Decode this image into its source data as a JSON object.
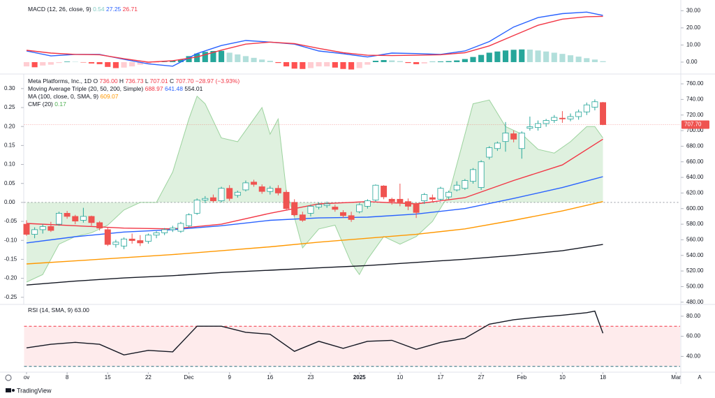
{
  "chart_data": [
    {
      "type": "macd",
      "title": "MACD (12, 26, close, 9)",
      "legend_values": [
        {
          "text": "0.54",
          "color": "#80cbc4"
        },
        {
          "text": "27.25",
          "color": "#2962ff"
        },
        {
          "text": "26.71",
          "color": "#f23645"
        }
      ],
      "ylim": [
        -4.5,
        33
      ],
      "yticks": [
        {
          "value": 30,
          "label": "30.00"
        },
        {
          "value": 20,
          "label": "20.00"
        },
        {
          "value": 10,
          "label": "10.00"
        },
        {
          "value": 0,
          "label": "0.00"
        }
      ],
      "histogram": {
        "colors": [
          "#26a69a",
          "#b2dfdb",
          "#ff5252",
          "#ffcdd2"
        ],
        "values": [
          -2.5,
          -3,
          -2,
          -1.5,
          -0.5,
          0.3,
          0.2,
          -0.2,
          -0.8,
          -1.2,
          -2.8,
          -3.5,
          -3.2,
          -2.5,
          -1.5,
          -0.8,
          -0.3,
          0.2,
          0.8,
          1.5,
          3.5,
          5,
          6,
          6.5,
          6.6,
          5.5,
          4.5,
          3.5,
          2.5,
          1.5,
          0.8,
          -0.5,
          -2.5,
          -3.8,
          -4,
          -3.5,
          -2.5,
          -2.5,
          -3.2,
          -4,
          -4.3,
          -3.5,
          -1.5,
          0.8,
          1.2,
          1,
          0.6,
          -0.5,
          -1.2,
          -0.8,
          0.2,
          0.4,
          0.6,
          1,
          1.8,
          3,
          4.2,
          5.5,
          6.2,
          6.8,
          7.2,
          7.4,
          7.3,
          6.8,
          6.2,
          5.5,
          4.8,
          4,
          3.2,
          2.3,
          1.5,
          0.54
        ]
      },
      "series": [
        {
          "color": "#2962ff",
          "x": [
            0,
            3,
            6,
            9,
            12,
            15,
            18,
            21,
            24,
            27,
            30,
            33,
            36,
            39,
            42,
            45,
            48,
            51,
            54,
            57,
            60,
            63,
            66,
            69,
            71
          ],
          "values": [
            6.5,
            3.6,
            4.5,
            4.5,
            1.6,
            -1.0,
            -2.4,
            5.0,
            9.7,
            12.6,
            11.7,
            10.5,
            6.5,
            4.9,
            3.0,
            5.3,
            5.0,
            4.5,
            6.5,
            12.0,
            20.5,
            26.0,
            28.3,
            29.2,
            27.25
          ]
        },
        {
          "color": "#f23645",
          "x": [
            0,
            3,
            6,
            9,
            12,
            15,
            18,
            21,
            24,
            27,
            30,
            33,
            36,
            39,
            42,
            45,
            48,
            51,
            54,
            57,
            60,
            63,
            66,
            69,
            71
          ],
          "values": [
            6.9,
            5.3,
            4.5,
            4.3,
            2.0,
            0.0,
            0.8,
            3.0,
            7.0,
            10.5,
            11.7,
            10.8,
            8.0,
            5.5,
            4.0,
            3.8,
            4.0,
            4.3,
            5.5,
            9.5,
            15.5,
            21.5,
            25.1,
            26.5,
            26.71
          ]
        }
      ]
    },
    {
      "type": "area",
      "title": "CMF (20)",
      "legend_value": "0.17",
      "color": "#4caf50",
      "ylim": [
        -0.267,
        0.331
      ],
      "yticks": [
        {
          "value": 0.3,
          "label": "0.30"
        },
        {
          "value": 0.25,
          "label": "0.25"
        },
        {
          "value": 0.2,
          "label": "0.20"
        },
        {
          "value": 0.15,
          "label": "0.15"
        },
        {
          "value": 0.1,
          "label": "0.10"
        },
        {
          "value": 0.05,
          "label": "0.05"
        },
        {
          "value": 0,
          "label": "0.00"
        },
        {
          "value": -0.05,
          "label": "-0.05"
        },
        {
          "value": -0.1,
          "label": "-0.10"
        },
        {
          "value": -0.15,
          "label": "-0.15"
        },
        {
          "value": -0.2,
          "label": "-0.20"
        },
        {
          "value": -0.25,
          "label": "-0.25"
        }
      ],
      "x": [
        0,
        2,
        4,
        6,
        8,
        10,
        12,
        14,
        16,
        18,
        20,
        21,
        22,
        24,
        26,
        28,
        29,
        30,
        31,
        32,
        33,
        34,
        36,
        38,
        40,
        41,
        42,
        44,
        46,
        48,
        50,
        52,
        54,
        55,
        57,
        59,
        61,
        63,
        65,
        67,
        69,
        70,
        71
      ],
      "values": [
        -0.21,
        -0.19,
        -0.11,
        -0.09,
        -0.08,
        -0.06,
        -0.02,
        0,
        0,
        0.08,
        0.22,
        0.28,
        0.26,
        0.17,
        0.16,
        0.22,
        0.25,
        0.18,
        0.22,
        0.03,
        -0.04,
        -0.12,
        -0.07,
        -0.06,
        -0.16,
        -0.19,
        -0.15,
        -0.09,
        -0.11,
        -0.09,
        -0.05,
        0.02,
        0.18,
        0.26,
        0.27,
        0.2,
        0.18,
        0.14,
        0.13,
        0.16,
        0.2,
        0.2,
        0.17
      ]
    },
    {
      "type": "candlestick",
      "legend": {
        "title": "Meta Platforms, Inc., 1D",
        "value_color": "#f23645",
        "fields": [
          {
            "label": "O",
            "value": "736.00"
          },
          {
            "label": "H",
            "value": "736.73"
          },
          {
            "label": "L",
            "value": "707.01"
          },
          {
            "label": "C",
            "value": "707.70"
          }
        ],
        "change": "−28.97 (−3.93%)"
      },
      "overlay_legend": [
        {
          "title": "Moving Average Triple (20, 50, 200, Simple)",
          "values": [
            "688.97",
            "641.48",
            "554.01"
          ]
        },
        {
          "title": "MA (100, close, 0, SMA, 9)",
          "values": [
            "609.07"
          ]
        }
      ],
      "last_price_label": "707.70",
      "up_color": "#26a69a",
      "down_color": "#ef5350",
      "ylim": [
        478,
        769
      ],
      "yticks": [
        {
          "value": 760,
          "label": "760.00"
        },
        {
          "value": 740,
          "label": "740.00"
        },
        {
          "value": 720,
          "label": "720.00"
        },
        {
          "value": 700,
          "label": "700.00"
        },
        {
          "value": 680,
          "label": "680.00"
        },
        {
          "value": 660,
          "label": "660.00"
        },
        {
          "value": 640,
          "label": "640.00"
        },
        {
          "value": 620,
          "label": "620.00"
        },
        {
          "value": 600,
          "label": "600.00"
        },
        {
          "value": 580,
          "label": "580.00"
        },
        {
          "value": 560,
          "label": "560.00"
        },
        {
          "value": 540,
          "label": "540.00"
        },
        {
          "value": 520,
          "label": "520.00"
        },
        {
          "value": 500,
          "label": "500.00"
        },
        {
          "value": 480,
          "label": "480.00"
        }
      ],
      "ohlc": [
        [
          580,
          585,
          565,
          567
        ],
        [
          567,
          576,
          562,
          573
        ],
        [
          573,
          580,
          568,
          577
        ],
        [
          577,
          583,
          570,
          572
        ],
        [
          580,
          596,
          578,
          594
        ],
        [
          594,
          597,
          587,
          590
        ],
        [
          590,
          592,
          580,
          584
        ],
        [
          585,
          601,
          582,
          590
        ],
        [
          590,
          591,
          578,
          582
        ],
        [
          582,
          584,
          572,
          575
        ],
        [
          573,
          576,
          552,
          554
        ],
        [
          554,
          560,
          550,
          557
        ],
        [
          552,
          563,
          548,
          561
        ],
        [
          561,
          568,
          555,
          559
        ],
        [
          559,
          566,
          552,
          556
        ],
        [
          558,
          568,
          555,
          566
        ],
        [
          566,
          571,
          562,
          569
        ],
        [
          569,
          575,
          566,
          573
        ],
        [
          573,
          578,
          570,
          575
        ],
        [
          571,
          583,
          569,
          581
        ],
        [
          578,
          594,
          576,
          592
        ],
        [
          594,
          613,
          592,
          611
        ],
        [
          611,
          616,
          607,
          613
        ],
        [
          614,
          618,
          608,
          610
        ],
        [
          610,
          628,
          608,
          626
        ],
        [
          626,
          630,
          610,
          613
        ],
        [
          617,
          623,
          614,
          621
        ],
        [
          624,
          636,
          622,
          633
        ],
        [
          634,
          637,
          628,
          631
        ],
        [
          628,
          631,
          619,
          622
        ],
        [
          622,
          629,
          618,
          626
        ],
        [
          626,
          630,
          617,
          620
        ],
        [
          621,
          624,
          598,
          600
        ],
        [
          608,
          612,
          590,
          592
        ],
        [
          592,
          596,
          583,
          585
        ],
        [
          594,
          605,
          590,
          603
        ],
        [
          602,
          608,
          599,
          605
        ],
        [
          604,
          609,
          601,
          606
        ],
        [
          602,
          605,
          596,
          599
        ],
        [
          595,
          598,
          588,
          591
        ],
        [
          591,
          596,
          583,
          586
        ],
        [
          596,
          607,
          594,
          605
        ],
        [
          603,
          612,
          600,
          610
        ],
        [
          611,
          631,
          609,
          630
        ],
        [
          629,
          630,
          612,
          615
        ],
        [
          612,
          614,
          605,
          609
        ],
        [
          612,
          632,
          603,
          607
        ],
        [
          609,
          613,
          598,
          603
        ],
        [
          606,
          608,
          588,
          595
        ],
        [
          610,
          620,
          606,
          618
        ],
        [
          614,
          618,
          608,
          612
        ],
        [
          612,
          628,
          610,
          626
        ],
        [
          615,
          623,
          612,
          621
        ],
        [
          624,
          635,
          622,
          630
        ],
        [
          626,
          638,
          624,
          636
        ],
        [
          635,
          652,
          632,
          650
        ],
        [
          627,
          662,
          624,
          660
        ],
        [
          666,
          680,
          663,
          678
        ],
        [
          677,
          686,
          674,
          684
        ],
        [
          686,
          711,
          673,
          697
        ],
        [
          696,
          700,
          685,
          689
        ],
        [
          677,
          699,
          664,
          697
        ],
        [
          703,
          718,
          700,
          705
        ],
        [
          704,
          713,
          700,
          709
        ],
        [
          709,
          715,
          705,
          713
        ],
        [
          713,
          720,
          710,
          717
        ],
        [
          716,
          725,
          710,
          715
        ],
        [
          715,
          722,
          712,
          718
        ],
        [
          718,
          727,
          714,
          724
        ],
        [
          724,
          736,
          720,
          733
        ],
        [
          730,
          740,
          726,
          737
        ],
        [
          736,
          736.73,
          707.01,
          707.7
        ]
      ],
      "series": [
        {
          "color": "#f23645",
          "x": [
            0,
            6,
            12,
            18,
            24,
            30,
            36,
            42,
            48,
            54,
            60,
            66,
            71
          ],
          "values": [
            581,
            578,
            575,
            574,
            580,
            594,
            606,
            609,
            606,
            614,
            636,
            656,
            689
          ]
        },
        {
          "color": "#2962ff",
          "x": [
            0,
            6,
            12,
            18,
            24,
            30,
            36,
            42,
            48,
            54,
            60,
            66,
            71
          ],
          "values": [
            556,
            564,
            570,
            573,
            578,
            585,
            588,
            589,
            593,
            600,
            613,
            627,
            641
          ]
        },
        {
          "color": "#131722",
          "x": [
            0,
            6,
            12,
            18,
            24,
            30,
            36,
            42,
            48,
            54,
            60,
            66,
            71
          ],
          "values": [
            502,
            507,
            511,
            514,
            518,
            521,
            524,
            527,
            531,
            535,
            540,
            546,
            554
          ]
        },
        {
          "color": "#ff9800",
          "x": [
            0,
            6,
            12,
            18,
            24,
            30,
            36,
            42,
            48,
            54,
            60,
            66,
            71
          ],
          "values": [
            529,
            533,
            537,
            541,
            546,
            551,
            557,
            562,
            567,
            574,
            585,
            597,
            609
          ]
        }
      ]
    },
    {
      "type": "line",
      "title": "RSI (14, SMA, 9)",
      "legend_value": "63.00",
      "color": "#131722",
      "ylim": [
        25,
        91
      ],
      "yticks": [
        {
          "value": 80,
          "label": "80.00"
        },
        {
          "value": 60,
          "label": "60.00"
        },
        {
          "value": 40,
          "label": "40.00"
        }
      ],
      "bands": [
        {
          "value": 70,
          "color": "#f23645"
        },
        {
          "value": 30,
          "color": "#2a6f7f"
        }
      ],
      "band_fill": "rgba(242,54,69,0.1)",
      "x": [
        0,
        3,
        6,
        9,
        12,
        15,
        18,
        21,
        24,
        27,
        30,
        33,
        36,
        39,
        42,
        45,
        48,
        51,
        54,
        57,
        60,
        63,
        66,
        69,
        70,
        71
      ],
      "values": [
        48.5,
        52,
        54,
        52,
        41.5,
        46,
        44.5,
        70,
        70,
        64,
        62,
        45,
        55,
        48,
        55,
        56,
        47,
        54,
        58,
        72,
        76.5,
        79,
        81,
        83.5,
        85,
        63
      ],
      "xlim": [
        -0.3,
        80.5
      ],
      "xticks": [
        {
          "value": 0,
          "label": "ov"
        },
        {
          "value": 5,
          "label": "8"
        },
        {
          "value": 10,
          "label": "15"
        },
        {
          "value": 15,
          "label": "22"
        },
        {
          "value": 20,
          "label": "Dec"
        },
        {
          "value": 25,
          "label": "9"
        },
        {
          "value": 30,
          "label": "16"
        },
        {
          "value": 35,
          "label": "23"
        },
        {
          "value": 41,
          "label": "2025",
          "bold": true
        },
        {
          "value": 46,
          "label": "10"
        },
        {
          "value": 51,
          "label": "17"
        },
        {
          "value": 56,
          "label": "27"
        },
        {
          "value": 61,
          "label": "Feb"
        },
        {
          "value": 66,
          "label": "10"
        },
        {
          "value": 71,
          "label": "18"
        },
        {
          "value": 80,
          "label": "Mar"
        }
      ]
    }
  ],
  "footer": {
    "brand": "TradingView",
    "auto_button": "A"
  }
}
